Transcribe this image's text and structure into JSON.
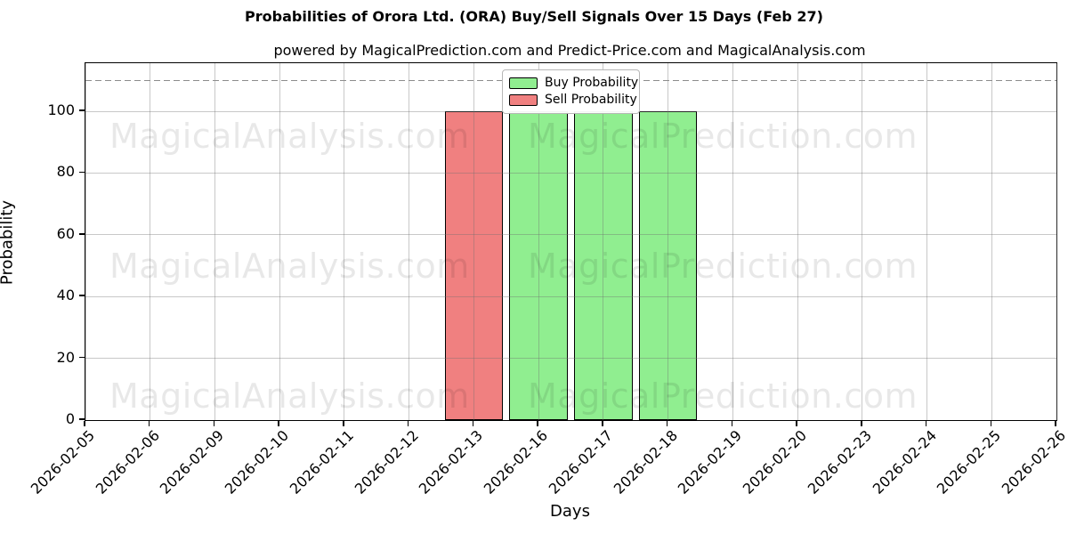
{
  "chart_data": {
    "type": "bar",
    "title": "Probabilities of Orora Ltd. (ORA) Buy/Sell Signals Over 15 Days (Feb 27)",
    "subtitle": "powered by MagicalPrediction.com and Predict-Price.com and MagicalAnalysis.com",
    "xlabel": "Days",
    "ylabel": "Probability",
    "categories": [
      "2026-02-05",
      "2026-02-06",
      "2026-02-09",
      "2026-02-10",
      "2026-02-11",
      "2026-02-12",
      "2026-02-13",
      "2026-02-16",
      "2026-02-17",
      "2026-02-18",
      "2026-02-19",
      "2026-02-20",
      "2026-02-23",
      "2026-02-24",
      "2026-02-25",
      "2026-02-26"
    ],
    "series": [
      {
        "name": "Buy Probability",
        "color": "#90ee90",
        "values": [
          0,
          0,
          0,
          0,
          0,
          0,
          0,
          100,
          100,
          100,
          0,
          0,
          0,
          0,
          0,
          0
        ]
      },
      {
        "name": "Sell Probability",
        "color": "#f08080",
        "values": [
          0,
          0,
          0,
          0,
          0,
          0,
          100,
          0,
          0,
          0,
          0,
          0,
          0,
          0,
          0,
          0
        ]
      }
    ],
    "ylim": [
      0,
      115.6
    ],
    "yticks": [
      0,
      20,
      40,
      60,
      80,
      100
    ],
    "threshold_line": {
      "y": 110,
      "style": "dashed",
      "color": "#8c8c8c"
    },
    "grid": true,
    "bar_edge_color": "#000000",
    "bar_width_fraction": 0.9,
    "legend_position": "upper center",
    "watermarks": [
      {
        "text": "MagicalAnalysis.com"
      },
      {
        "text": "MagicalPrediction.com"
      }
    ]
  }
}
